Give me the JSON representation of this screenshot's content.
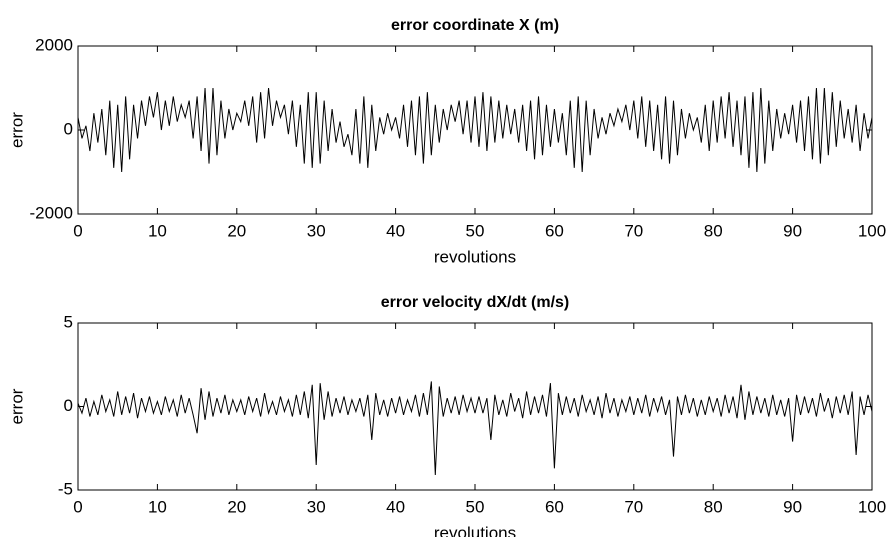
{
  "chart_data": [
    {
      "type": "line",
      "title": "error coordinate X (m)",
      "x_label": "revolutions",
      "y_label": "error",
      "color": "#000000",
      "xlim": [
        0,
        100
      ],
      "xticks": [
        0,
        10,
        20,
        30,
        40,
        50,
        60,
        70,
        80,
        90,
        100
      ],
      "ylim": [
        -2000,
        2000
      ],
      "yticks": [
        -2000,
        0,
        2000
      ],
      "x": [
        0,
        0.5,
        1,
        1.5,
        2,
        2.5,
        3,
        3.5,
        4,
        4.5,
        5,
        5.5,
        6,
        6.5,
        7,
        7.5,
        8,
        8.5,
        9,
        9.5,
        10,
        10.5,
        11,
        11.5,
        12,
        12.5,
        13,
        13.5,
        14,
        14.5,
        15,
        15.5,
        16,
        16.5,
        17,
        17.5,
        18,
        18.5,
        19,
        19.5,
        20,
        20.5,
        21,
        21.5,
        22,
        22.5,
        23,
        23.5,
        24,
        24.5,
        25,
        25.5,
        26,
        26.5,
        27,
        27.5,
        28,
        28.5,
        29,
        29.5,
        30,
        30.5,
        31,
        31.5,
        32,
        32.5,
        33,
        33.5,
        34,
        34.5,
        35,
        35.5,
        36,
        36.5,
        37,
        37.5,
        38,
        38.5,
        39,
        39.5,
        40,
        40.5,
        41,
        41.5,
        42,
        42.5,
        43,
        43.5,
        44,
        44.5,
        45,
        45.5,
        46,
        46.5,
        47,
        47.5,
        48,
        48.5,
        49,
        49.5,
        50,
        50.5,
        51,
        51.5,
        52,
        52.5,
        53,
        53.5,
        54,
        54.5,
        55,
        55.5,
        56,
        56.5,
        57,
        57.5,
        58,
        58.5,
        59,
        59.5,
        60,
        60.5,
        61,
        61.5,
        62,
        62.5,
        63,
        63.5,
        64,
        64.5,
        65,
        65.5,
        66,
        66.5,
        67,
        67.5,
        68,
        68.5,
        69,
        69.5,
        70,
        70.5,
        71,
        71.5,
        72,
        72.5,
        73,
        73.5,
        74,
        74.5,
        75,
        75.5,
        76,
        76.5,
        77,
        77.5,
        78,
        78.5,
        79,
        79.5,
        80,
        80.5,
        81,
        81.5,
        82,
        82.5,
        83,
        83.5,
        84,
        84.5,
        85,
        85.5,
        86,
        86.5,
        87,
        87.5,
        88,
        88.5,
        89,
        89.5,
        90,
        90.5,
        91,
        91.5,
        92,
        92.5,
        93,
        93.5,
        94,
        94.5,
        95,
        95.5,
        96,
        96.5,
        97,
        97.5,
        98,
        98.5,
        99,
        99.5,
        100
      ],
      "values": [
        300,
        -200,
        100,
        -500,
        400,
        -300,
        500,
        -600,
        700,
        -900,
        600,
        -1000,
        800,
        -700,
        600,
        -200,
        700,
        100,
        800,
        300,
        900,
        0,
        700,
        100,
        800,
        200,
        600,
        300,
        700,
        -200,
        800,
        -500,
        1000,
        -800,
        1000,
        -600,
        700,
        -200,
        500,
        0,
        400,
        200,
        700,
        100,
        800,
        -300,
        900,
        -200,
        1000,
        100,
        700,
        300,
        600,
        -100,
        700,
        -400,
        600,
        -800,
        900,
        -900,
        900,
        -800,
        700,
        -500,
        500,
        -300,
        200,
        -400,
        -100,
        -600,
        500,
        -800,
        800,
        -900,
        600,
        -500,
        300,
        -100,
        400,
        0,
        300,
        -200,
        600,
        -400,
        700,
        -600,
        800,
        -800,
        900,
        -600,
        600,
        -300,
        500,
        0,
        600,
        200,
        700,
        -100,
        700,
        -300,
        800,
        -400,
        900,
        -500,
        800,
        -300,
        700,
        -200,
        600,
        -100,
        500,
        -300,
        600,
        -500,
        700,
        -700,
        800,
        -600,
        600,
        -400,
        500,
        -300,
        400,
        -600,
        700,
        -900,
        800,
        -1000,
        700,
        -600,
        500,
        -200,
        300,
        -100,
        400,
        100,
        500,
        200,
        600,
        0,
        700,
        -200,
        800,
        -400,
        700,
        -500,
        600,
        -700,
        800,
        -800,
        700,
        -600,
        500,
        -200,
        400,
        0,
        300,
        -300,
        600,
        -500,
        700,
        -300,
        800,
        -200,
        900,
        -400,
        700,
        -600,
        800,
        -900,
        900,
        -1000,
        1000,
        -800,
        700,
        -500,
        500,
        -200,
        400,
        -100,
        600,
        -300,
        700,
        -500,
        800,
        -700,
        1000,
        -800,
        1000,
        -600,
        900,
        -400,
        700,
        -200,
        500,
        -300,
        600,
        -500,
        400,
        -200,
        300
      ]
    },
    {
      "type": "line",
      "title": "error velocity dX/dt (m/s)",
      "x_label": "revolutions",
      "y_label": "error",
      "color": "#000000",
      "xlim": [
        0,
        100
      ],
      "xticks": [
        0,
        10,
        20,
        30,
        40,
        50,
        60,
        70,
        80,
        90,
        100
      ],
      "ylim": [
        -5,
        5
      ],
      "yticks": [
        -5,
        0,
        5
      ],
      "x": [
        0,
        0.5,
        1,
        1.5,
        2,
        2.5,
        3,
        3.5,
        4,
        4.5,
        5,
        5.5,
        6,
        6.5,
        7,
        7.5,
        8,
        8.5,
        9,
        9.5,
        10,
        10.5,
        11,
        11.5,
        12,
        12.5,
        13,
        13.5,
        14,
        14.5,
        15,
        15.5,
        16,
        16.5,
        17,
        17.5,
        18,
        18.5,
        19,
        19.5,
        20,
        20.5,
        21,
        21.5,
        22,
        22.5,
        23,
        23.5,
        24,
        24.5,
        25,
        25.5,
        26,
        26.5,
        27,
        27.5,
        28,
        28.5,
        29,
        29.5,
        30,
        30.5,
        31,
        31.5,
        32,
        32.5,
        33,
        33.5,
        34,
        34.5,
        35,
        35.5,
        36,
        36.5,
        37,
        37.5,
        38,
        38.5,
        39,
        39.5,
        40,
        40.5,
        41,
        41.5,
        42,
        42.5,
        43,
        43.5,
        44,
        44.5,
        45,
        45.5,
        46,
        46.5,
        47,
        47.5,
        48,
        48.5,
        49,
        49.5,
        50,
        50.5,
        51,
        51.5,
        52,
        52.5,
        53,
        53.5,
        54,
        54.5,
        55,
        55.5,
        56,
        56.5,
        57,
        57.5,
        58,
        58.5,
        59,
        59.5,
        60,
        60.5,
        61,
        61.5,
        62,
        62.5,
        63,
        63.5,
        64,
        64.5,
        65,
        65.5,
        66,
        66.5,
        67,
        67.5,
        68,
        68.5,
        69,
        69.5,
        70,
        70.5,
        71,
        71.5,
        72,
        72.5,
        73,
        73.5,
        74,
        74.5,
        75,
        75.5,
        76,
        76.5,
        77,
        77.5,
        78,
        78.5,
        79,
        79.5,
        80,
        80.5,
        81,
        81.5,
        82,
        82.5,
        83,
        83.5,
        84,
        84.5,
        85,
        85.5,
        86,
        86.5,
        87,
        87.5,
        88,
        88.5,
        89,
        89.5,
        90,
        90.5,
        91,
        91.5,
        92,
        92.5,
        93,
        93.5,
        94,
        94.5,
        95,
        95.5,
        96,
        96.5,
        97,
        97.5,
        98,
        98.5,
        99,
        99.5,
        100
      ],
      "values": [
        0.2,
        -0.4,
        0.5,
        -0.6,
        0.3,
        -0.5,
        0.7,
        -0.3,
        0.4,
        -0.6,
        0.9,
        -0.5,
        0.6,
        -0.4,
        0.8,
        -0.7,
        0.5,
        -0.3,
        0.6,
        -0.4,
        0.3,
        -0.5,
        0.6,
        -0.3,
        0.4,
        -0.6,
        0.7,
        -0.4,
        0.5,
        -0.5,
        -1.6,
        1.1,
        -0.8,
        0.9,
        -0.6,
        0.5,
        -0.4,
        0.7,
        -0.5,
        0.4,
        -0.3,
        0.4,
        -0.5,
        0.6,
        -0.3,
        0.5,
        -0.6,
        0.8,
        -0.4,
        0.3,
        -0.5,
        0.6,
        -0.3,
        0.4,
        -0.6,
        0.7,
        -0.5,
        0.9,
        -0.7,
        1.3,
        -3.5,
        1.4,
        -0.8,
        0.9,
        -0.6,
        0.5,
        -0.4,
        0.6,
        -0.5,
        0.4,
        -0.3,
        0.5,
        -0.6,
        0.7,
        -2.0,
        0.8,
        -0.5,
        0.4,
        -0.6,
        0.5,
        -0.4,
        0.6,
        -0.5,
        0.4,
        -0.3,
        0.7,
        -0.6,
        0.8,
        -0.5,
        1.5,
        -4.1,
        1.2,
        -0.6,
        0.5,
        -0.4,
        0.6,
        -0.5,
        0.7,
        -0.3,
        0.5,
        -0.4,
        0.6,
        -0.4,
        0.5,
        -2.0,
        0.7,
        -0.5,
        0.4,
        -0.6,
        0.8,
        -0.3,
        0.5,
        -0.7,
        0.9,
        -0.5,
        0.6,
        -0.4,
        0.7,
        -0.6,
        1.4,
        -3.7,
        0.8,
        -0.5,
        0.6,
        -0.4,
        0.5,
        -0.6,
        0.7,
        -0.3,
        0.4,
        -0.5,
        0.6,
        -0.7,
        0.8,
        -0.4,
        0.5,
        -0.6,
        0.4,
        -0.3,
        0.6,
        -0.5,
        0.5,
        -0.4,
        0.7,
        -0.6,
        0.5,
        -0.3,
        0.6,
        -0.5,
        0.4,
        -3.0,
        0.6,
        -0.5,
        0.7,
        -0.4,
        0.5,
        -0.6,
        0.4,
        -0.5,
        0.6,
        -0.3,
        0.5,
        -0.6,
        0.7,
        -0.4,
        0.6,
        -0.7,
        1.3,
        -0.8,
        0.9,
        -0.5,
        0.6,
        -0.4,
        0.5,
        -0.6,
        0.7,
        -0.5,
        0.4,
        -0.6,
        0.5,
        -2.1,
        0.7,
        -0.5,
        0.6,
        -0.4,
        0.5,
        -0.6,
        0.8,
        -0.3,
        0.5,
        -0.7,
        0.6,
        -0.4,
        0.7,
        -0.5,
        0.9,
        -2.9,
        0.6,
        -0.5,
        0.7,
        -0.3
      ]
    }
  ]
}
